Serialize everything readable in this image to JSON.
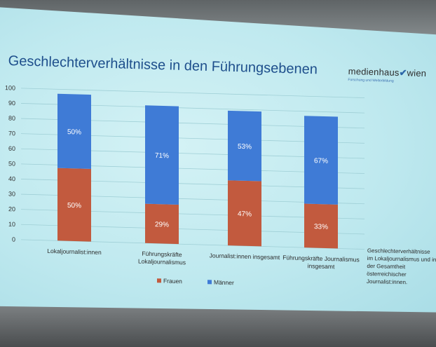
{
  "slide": {
    "title": "Geschlechterverhältnisse in den Führungsebenen",
    "logo_name": "medienhaus",
    "logo_city": "wien",
    "logo_subline": "Forschung und Weiterbildung",
    "side_note": "Geschlechterverhältnisse im Lokaljournalismus und in der Gesamtheit österreichischer Journalist:innen."
  },
  "colors": {
    "frauen": "#c25a3e",
    "maenner": "#3f7bd6"
  },
  "chart_data": {
    "type": "bar",
    "stacked": true,
    "title": "",
    "xlabel": "",
    "ylabel": "",
    "ylim": [
      0,
      100
    ],
    "yticks": [
      0,
      10,
      20,
      30,
      40,
      50,
      60,
      70,
      80,
      90,
      100
    ],
    "grid": true,
    "legend_position": "bottom",
    "categories": [
      "Lokaljournalist:innen",
      "Führungskräfte Lokaljournalismus",
      "Journalist:innen insgesamt",
      "Führungskräfte Journalismus insgesamt"
    ],
    "category_lines": [
      [
        "Lokaljournalist:innen"
      ],
      [
        "Führungskräfte",
        "Lokaljournalismus"
      ],
      [
        "Journalist:innen insgesamt"
      ],
      [
        "Führungskräfte Journalismus",
        "insgesamt"
      ]
    ],
    "series": [
      {
        "name": "Frauen",
        "values": [
          48,
          26,
          43,
          29
        ],
        "labels": [
          "50%",
          "29%",
          "47%",
          "33%"
        ]
      },
      {
        "name": "Männer",
        "values": [
          49,
          65,
          46,
          58
        ],
        "labels": [
          "50%",
          "71%",
          "53%",
          "67%"
        ]
      }
    ]
  }
}
